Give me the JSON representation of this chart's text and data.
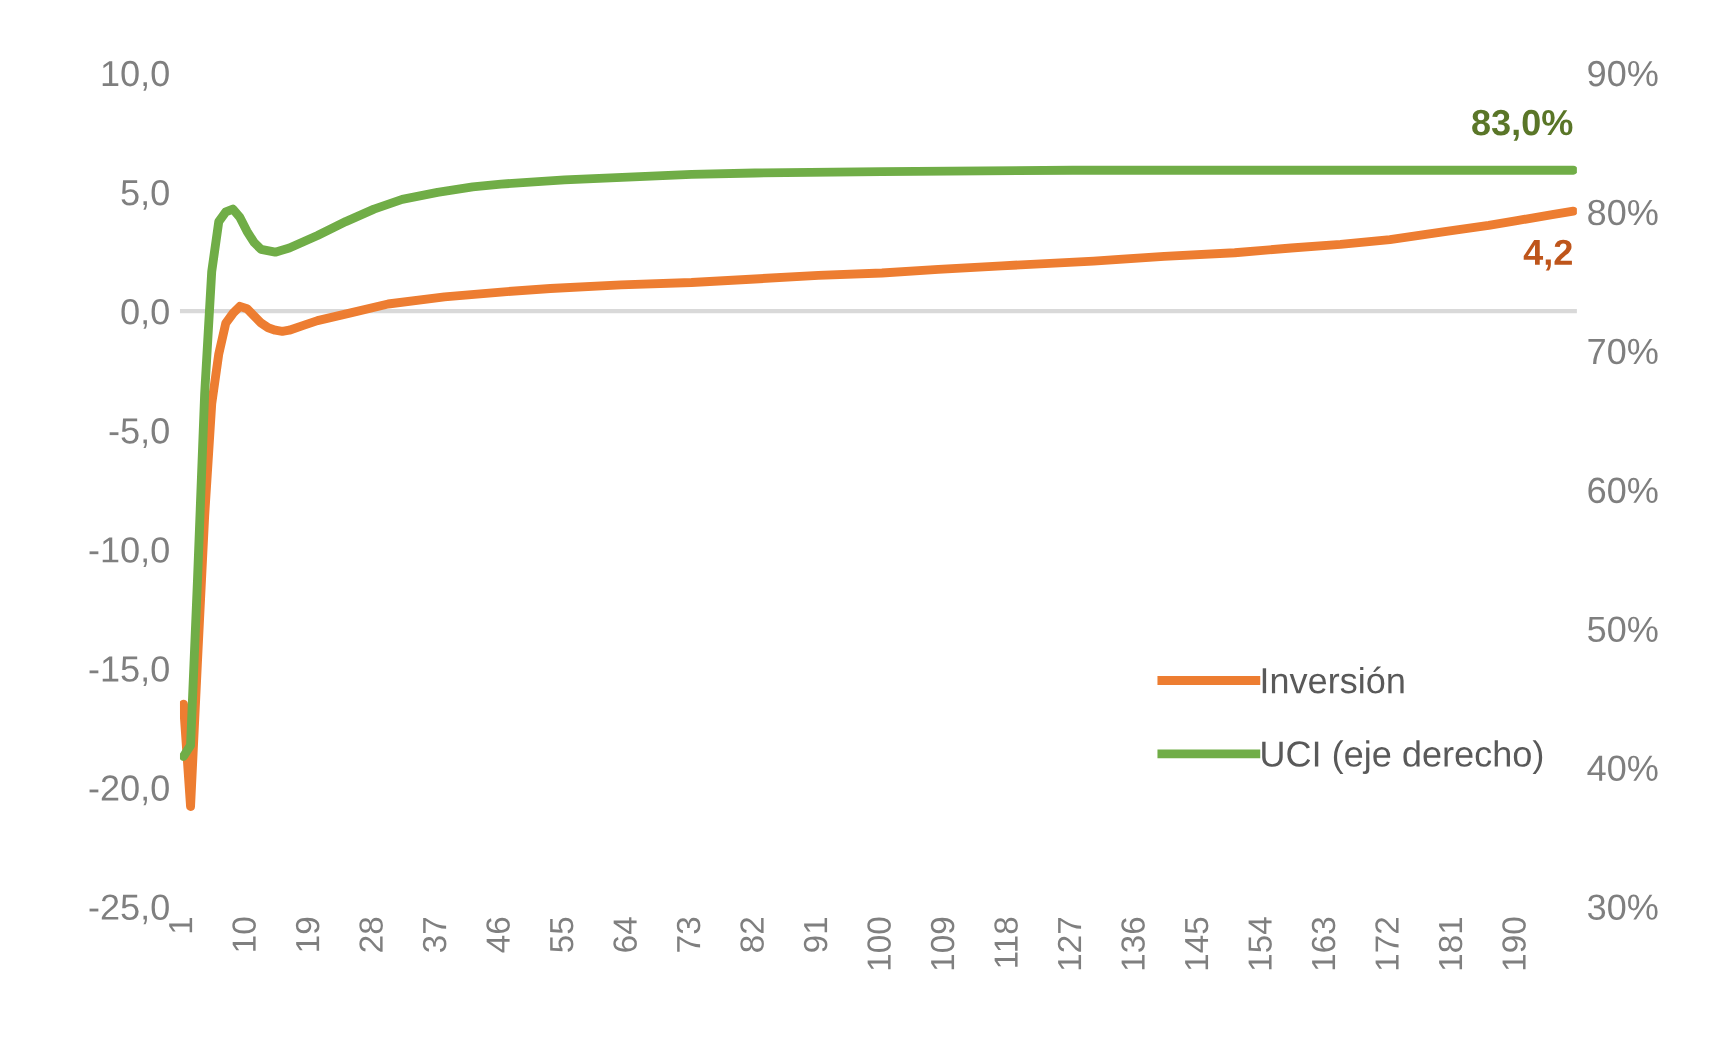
{
  "chart_data": {
    "type": "line",
    "xlim": [
      0.5,
      198.5
    ],
    "xticks": [
      1,
      10,
      19,
      28,
      37,
      46,
      55,
      64,
      73,
      82,
      91,
      100,
      109,
      118,
      127,
      136,
      145,
      154,
      163,
      172,
      181,
      190
    ],
    "ylim": [
      -25,
      10
    ],
    "yticks": [
      {
        "value": -25,
        "label": "-25,0"
      },
      {
        "value": -20,
        "label": "-20,0"
      },
      {
        "value": -15,
        "label": "-15,0"
      },
      {
        "value": -10,
        "label": "-10,0"
      },
      {
        "value": -5,
        "label": "-5,0"
      },
      {
        "value": 0,
        "label": "0,0"
      },
      {
        "value": 5,
        "label": "5,0"
      },
      {
        "value": 10,
        "label": "10,0"
      }
    ],
    "y2lim": [
      30,
      90
    ],
    "y2ticks": [
      {
        "value": 30,
        "label": "30%"
      },
      {
        "value": 40,
        "label": "40%"
      },
      {
        "value": 50,
        "label": "50%"
      },
      {
        "value": 60,
        "label": "60%"
      },
      {
        "value": 70,
        "label": "70%"
      },
      {
        "value": 80,
        "label": "80%"
      },
      {
        "value": 90,
        "label": "90%"
      }
    ],
    "ref_lines": [
      {
        "axis": "y",
        "value": 0,
        "color": "#d9d9d9"
      }
    ],
    "grid": false,
    "legend": "bottom right",
    "marker": "none",
    "line_style": "solid",
    "series": [
      {
        "name": "Inversión",
        "color": "#ed7d31",
        "x": [
          1,
          2,
          3,
          4,
          5,
          6,
          7,
          8,
          9,
          10,
          11,
          12,
          13,
          14,
          15,
          16,
          18,
          20,
          25,
          30,
          38,
          46,
          53,
          63,
          73,
          82,
          91,
          100,
          108,
          117,
          130,
          140,
          150,
          158,
          165,
          172,
          180,
          186,
          190,
          195,
          198
        ],
        "values": [
          -16.5,
          -20.8,
          -14.6,
          -8.6,
          -3.9,
          -1.8,
          -0.5,
          -0.1,
          0.2,
          0.1,
          -0.2,
          -0.5,
          -0.7,
          -0.8,
          -0.85,
          -0.8,
          -0.6,
          -0.4,
          -0.05,
          0.3,
          0.6,
          0.8,
          0.95,
          1.1,
          1.2,
          1.35,
          1.5,
          1.6,
          1.75,
          1.9,
          2.1,
          2.3,
          2.45,
          2.65,
          2.8,
          3.0,
          3.35,
          3.6,
          3.8,
          4.05,
          4.2
        ],
        "value_labels": [
          null,
          null,
          null,
          null,
          null,
          null,
          null,
          null,
          null,
          null,
          null,
          null,
          null,
          null,
          null,
          null,
          null,
          null,
          null,
          null,
          null,
          null,
          null,
          null,
          null,
          null,
          null,
          null,
          null,
          null,
          null,
          null,
          null,
          null,
          null,
          null,
          null,
          null,
          null,
          null,
          "4,2"
        ]
      },
      {
        "name": "UCI (eje derecho)",
        "color": "#70ad47",
        "axis": "y2",
        "x": [
          1,
          2,
          3,
          4,
          5,
          6,
          7,
          8,
          9,
          10,
          11,
          12,
          14,
          16,
          20,
          24,
          28,
          32,
          37,
          42,
          46,
          55,
          64,
          73,
          82,
          100,
          127,
          150,
          175,
          198
        ],
        "values": [
          40.8,
          41.6,
          53.7,
          66.9,
          75.7,
          79.3,
          80.0,
          80.2,
          79.6,
          78.6,
          77.8,
          77.3,
          77.1,
          77.4,
          78.3,
          79.3,
          80.2,
          80.9,
          81.4,
          81.8,
          82.0,
          82.3,
          82.5,
          82.7,
          82.8,
          82.9,
          83.0,
          83.0,
          83.0,
          83.0
        ],
        "value_labels": [
          null,
          null,
          null,
          null,
          null,
          null,
          null,
          null,
          null,
          null,
          null,
          null,
          null,
          null,
          null,
          null,
          null,
          null,
          null,
          null,
          null,
          null,
          null,
          null,
          null,
          null,
          null,
          null,
          null,
          "83,0%"
        ]
      }
    ]
  }
}
